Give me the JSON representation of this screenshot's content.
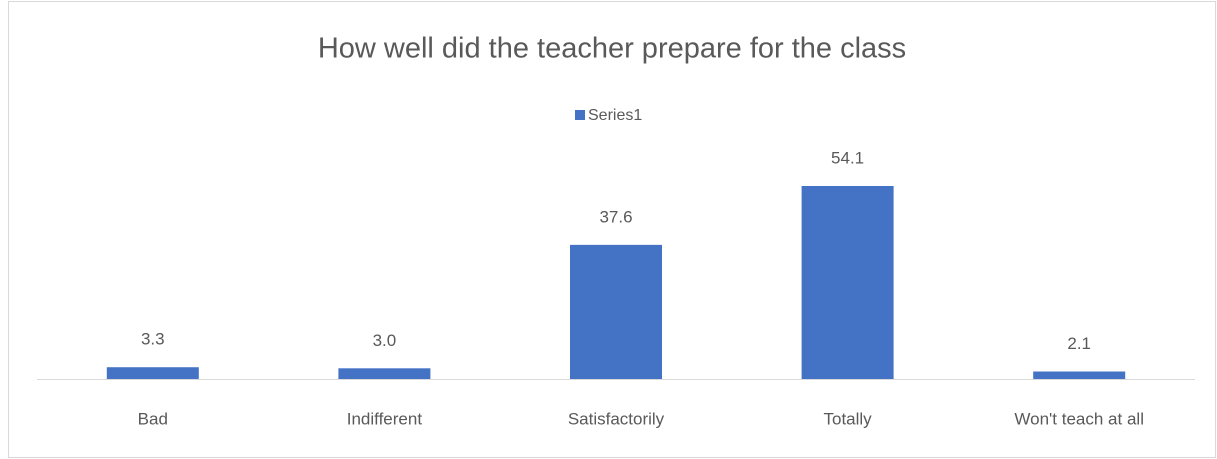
{
  "chart_data": {
    "type": "bar",
    "title": "How well did the teacher prepare for the class",
    "categories": [
      "Bad",
      "Indifferent",
      "Satisfactorily",
      "Totally",
      "Won't teach at all"
    ],
    "series": [
      {
        "name": "Series1",
        "color": "#4472c4",
        "values": [
          3.3,
          3.0,
          37.6,
          54.1,
          2.1
        ],
        "value_labels": [
          "3.3",
          "3.0",
          "37.6",
          "54.1",
          "2.1"
        ]
      }
    ],
    "legend": "top"
  }
}
